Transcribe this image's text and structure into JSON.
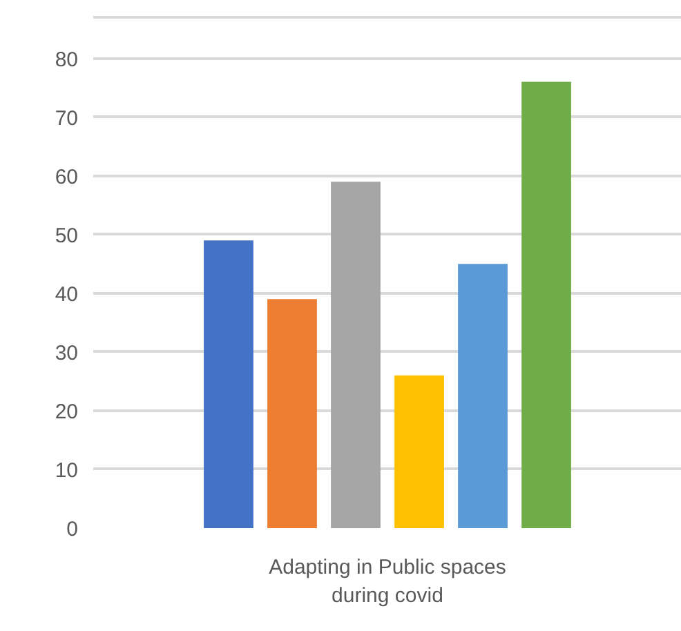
{
  "chart_data": {
    "type": "bar",
    "categories": [
      "Adapting in Public spaces during covid"
    ],
    "series": [
      {
        "color": "#4472c4",
        "values": [
          49
        ]
      },
      {
        "color": "#ed7d31",
        "values": [
          39
        ]
      },
      {
        "color": "#a5a5a5",
        "values": [
          59
        ]
      },
      {
        "color": "#ffc000",
        "values": [
          26
        ]
      },
      {
        "color": "#5b9bd5",
        "values": [
          45
        ]
      },
      {
        "color": "#70ad47",
        "values": [
          76
        ]
      }
    ],
    "ylim": [
      0,
      87
    ],
    "yticks": [
      0,
      10,
      20,
      30,
      40,
      50,
      60,
      70,
      80
    ],
    "grid": "y"
  }
}
